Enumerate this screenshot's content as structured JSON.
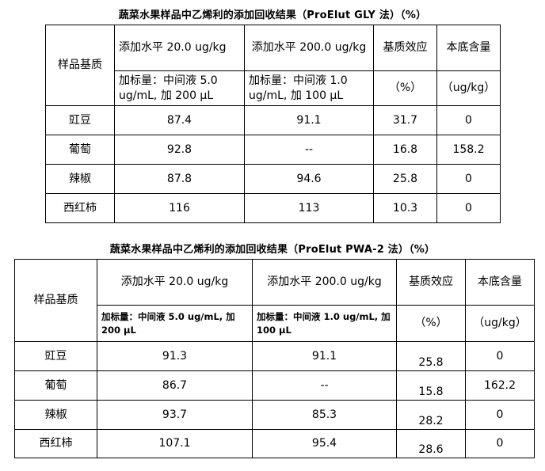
{
  "table1": {
    "title": "蔬菜水果样品中乙烯利的添加回收结果（ProElut GLY 法）（%）",
    "col_matrix": "样品基质",
    "col_level1": "添加水平 20.0 ug/kg",
    "col_level2": "添加水平 200.0 ug/kg",
    "col_effect": "基质效应",
    "col_background": "本底含量",
    "sub_level1": "加标量：中间液 5.0 ug/mL, 加 200 μL",
    "sub_level2": "加标量：中间液 1.0 ug/mL, 加 100 μL",
    "sub_effect": "（%）",
    "sub_background": "（ug/kg）",
    "rows": [
      {
        "matrix": "豇豆",
        "level1": "87.4",
        "level2": "91.1",
        "effect": "31.7",
        "background": "0"
      },
      {
        "matrix": "葡萄",
        "level1": "92.8",
        "level2": "--",
        "effect": "16.8",
        "background": "158.2"
      },
      {
        "matrix": "辣椒",
        "level1": "87.8",
        "level2": "94.6",
        "effect": "25.8",
        "background": "0"
      },
      {
        "matrix": "西红柿",
        "level1": "116",
        "level2": "113",
        "effect": "10.3",
        "background": "0"
      }
    ]
  },
  "table2": {
    "title": "蔬菜水果样品中乙烯利的添加回收结果（ProElut  PWA-2 法）（%）",
    "col_matrix": "样品基质",
    "col_level1": "添加水平 20.0 ug/kg",
    "col_level2": "添加水平 200.0 ug/kg",
    "col_effect": "基质效应",
    "col_background": "本底含量",
    "sub_level1": "加标量：中间液  5.0 ug/mL, 加 200  μL",
    "sub_level2": "加标量：中间液 1.0 ug/mL, 加 100 μL",
    "sub_effect": "（%）",
    "sub_background": "（ug/kg）",
    "rows": [
      {
        "matrix": "豇豆",
        "level1": "91.3",
        "level2": "91.1",
        "effect": "25.8",
        "background": "0"
      },
      {
        "matrix": "葡萄",
        "level1": "86.7",
        "level2": "--",
        "effect": "15.8",
        "background": "162.2"
      },
      {
        "matrix": "辣椒",
        "level1": "93.7",
        "level2": "85.3",
        "effect": "28.2",
        "background": "0"
      },
      {
        "matrix": "西红柿",
        "level1": "107.1",
        "level2": "95.4",
        "effect": "28.6",
        "background": "0"
      }
    ]
  }
}
